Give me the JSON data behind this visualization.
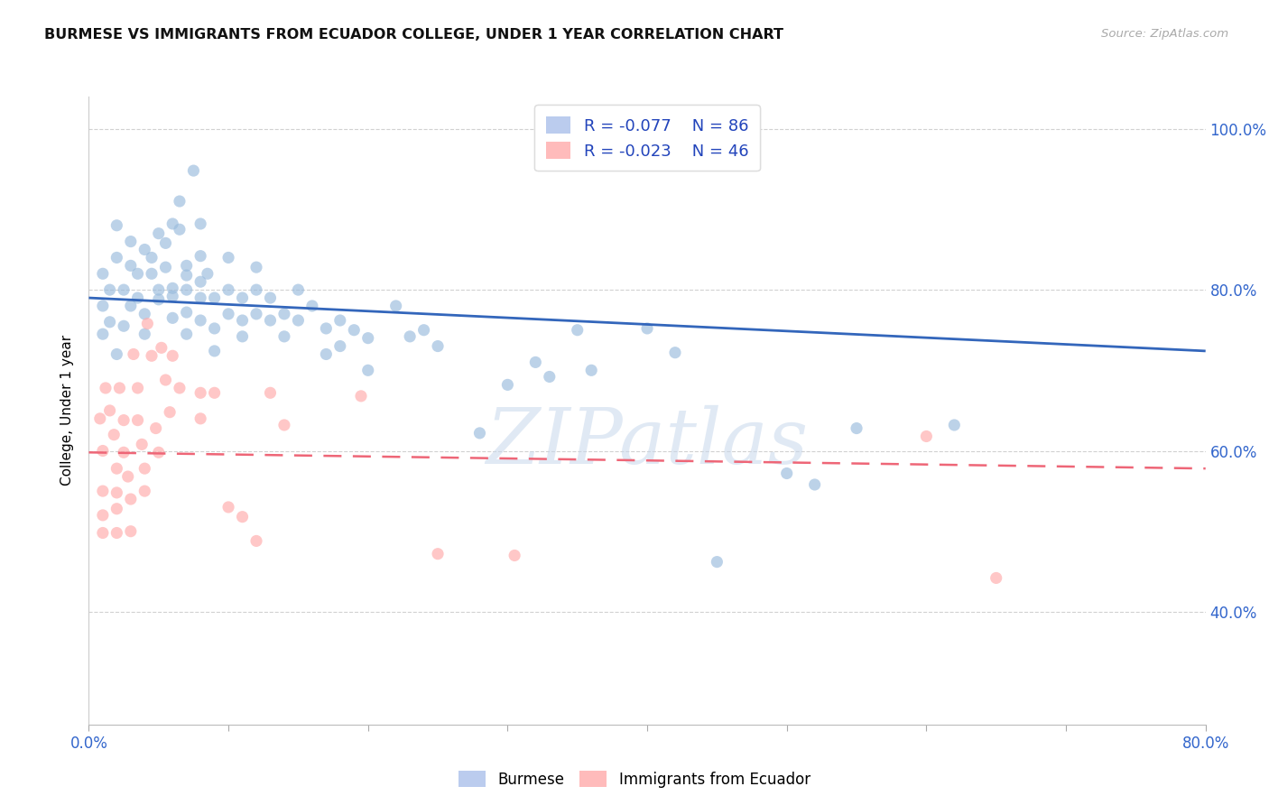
{
  "title": "BURMESE VS IMMIGRANTS FROM ECUADOR COLLEGE, UNDER 1 YEAR CORRELATION CHART",
  "source": "Source: ZipAtlas.com",
  "ylabel": "College, Under 1 year",
  "xlim": [
    0.0,
    0.8
  ],
  "ylim": [
    0.26,
    1.04
  ],
  "xticks": [
    0.0,
    0.1,
    0.2,
    0.3,
    0.4,
    0.5,
    0.6,
    0.7,
    0.8
  ],
  "xticklabels": [
    "0.0%",
    "",
    "",
    "",
    "",
    "",
    "",
    "",
    "80.0%"
  ],
  "yticks": [
    0.4,
    0.6,
    0.8,
    1.0
  ],
  "right_yticklabels": [
    "40.0%",
    "60.0%",
    "80.0%",
    "100.0%"
  ],
  "legend_blue_r": "R = -0.077",
  "legend_blue_n": "N = 86",
  "legend_pink_r": "R = -0.023",
  "legend_pink_n": "N = 46",
  "legend_label_blue": "Burmese",
  "legend_label_pink": "Immigrants from Ecuador",
  "blue_scatter_color": "#99BBDD",
  "pink_scatter_color": "#FFAAAA",
  "blue_line_color": "#3366BB",
  "pink_line_color": "#EE6677",
  "watermark": "ZIPatlas",
  "blue_trend_y": [
    0.79,
    0.724
  ],
  "pink_trend_y": [
    0.598,
    0.578
  ],
  "blue_dots": [
    [
      0.01,
      0.745
    ],
    [
      0.01,
      0.78
    ],
    [
      0.01,
      0.82
    ],
    [
      0.015,
      0.76
    ],
    [
      0.015,
      0.8
    ],
    [
      0.02,
      0.84
    ],
    [
      0.02,
      0.88
    ],
    [
      0.02,
      0.72
    ],
    [
      0.025,
      0.755
    ],
    [
      0.025,
      0.8
    ],
    [
      0.03,
      0.83
    ],
    [
      0.03,
      0.86
    ],
    [
      0.03,
      0.78
    ],
    [
      0.035,
      0.82
    ],
    [
      0.035,
      0.79
    ],
    [
      0.04,
      0.85
    ],
    [
      0.04,
      0.77
    ],
    [
      0.04,
      0.745
    ],
    [
      0.045,
      0.84
    ],
    [
      0.045,
      0.82
    ],
    [
      0.05,
      0.8
    ],
    [
      0.05,
      0.87
    ],
    [
      0.05,
      0.788
    ],
    [
      0.055,
      0.858
    ],
    [
      0.055,
      0.828
    ],
    [
      0.06,
      0.802
    ],
    [
      0.06,
      0.882
    ],
    [
      0.06,
      0.792
    ],
    [
      0.06,
      0.765
    ],
    [
      0.065,
      0.91
    ],
    [
      0.065,
      0.875
    ],
    [
      0.07,
      0.83
    ],
    [
      0.07,
      0.818
    ],
    [
      0.07,
      0.8
    ],
    [
      0.07,
      0.772
    ],
    [
      0.07,
      0.745
    ],
    [
      0.075,
      0.948
    ],
    [
      0.08,
      0.882
    ],
    [
      0.08,
      0.842
    ],
    [
      0.08,
      0.81
    ],
    [
      0.08,
      0.79
    ],
    [
      0.08,
      0.762
    ],
    [
      0.085,
      0.82
    ],
    [
      0.09,
      0.79
    ],
    [
      0.09,
      0.752
    ],
    [
      0.09,
      0.724
    ],
    [
      0.1,
      0.84
    ],
    [
      0.1,
      0.8
    ],
    [
      0.1,
      0.77
    ],
    [
      0.11,
      0.79
    ],
    [
      0.11,
      0.762
    ],
    [
      0.11,
      0.742
    ],
    [
      0.12,
      0.828
    ],
    [
      0.12,
      0.8
    ],
    [
      0.12,
      0.77
    ],
    [
      0.13,
      0.762
    ],
    [
      0.13,
      0.79
    ],
    [
      0.14,
      0.77
    ],
    [
      0.14,
      0.742
    ],
    [
      0.15,
      0.8
    ],
    [
      0.15,
      0.762
    ],
    [
      0.16,
      0.78
    ],
    [
      0.17,
      0.752
    ],
    [
      0.17,
      0.72
    ],
    [
      0.18,
      0.762
    ],
    [
      0.18,
      0.73
    ],
    [
      0.19,
      0.75
    ],
    [
      0.2,
      0.74
    ],
    [
      0.2,
      0.7
    ],
    [
      0.22,
      0.78
    ],
    [
      0.23,
      0.742
    ],
    [
      0.24,
      0.75
    ],
    [
      0.25,
      0.73
    ],
    [
      0.28,
      0.622
    ],
    [
      0.3,
      0.682
    ],
    [
      0.32,
      0.71
    ],
    [
      0.33,
      0.692
    ],
    [
      0.35,
      0.75
    ],
    [
      0.36,
      0.7
    ],
    [
      0.4,
      0.752
    ],
    [
      0.42,
      0.722
    ],
    [
      0.45,
      0.462
    ],
    [
      0.5,
      0.572
    ],
    [
      0.52,
      0.558
    ],
    [
      0.55,
      0.628
    ],
    [
      0.62,
      0.632
    ]
  ],
  "pink_dots": [
    [
      0.008,
      0.64
    ],
    [
      0.01,
      0.6
    ],
    [
      0.01,
      0.55
    ],
    [
      0.01,
      0.52
    ],
    [
      0.01,
      0.498
    ],
    [
      0.012,
      0.678
    ],
    [
      0.015,
      0.65
    ],
    [
      0.018,
      0.62
    ],
    [
      0.02,
      0.578
    ],
    [
      0.02,
      0.548
    ],
    [
      0.02,
      0.528
    ],
    [
      0.02,
      0.498
    ],
    [
      0.022,
      0.678
    ],
    [
      0.025,
      0.638
    ],
    [
      0.025,
      0.598
    ],
    [
      0.028,
      0.568
    ],
    [
      0.03,
      0.54
    ],
    [
      0.03,
      0.5
    ],
    [
      0.032,
      0.72
    ],
    [
      0.035,
      0.678
    ],
    [
      0.035,
      0.638
    ],
    [
      0.038,
      0.608
    ],
    [
      0.04,
      0.578
    ],
    [
      0.04,
      0.55
    ],
    [
      0.042,
      0.758
    ],
    [
      0.045,
      0.718
    ],
    [
      0.048,
      0.628
    ],
    [
      0.05,
      0.598
    ],
    [
      0.052,
      0.728
    ],
    [
      0.055,
      0.688
    ],
    [
      0.058,
      0.648
    ],
    [
      0.06,
      0.718
    ],
    [
      0.065,
      0.678
    ],
    [
      0.08,
      0.672
    ],
    [
      0.08,
      0.64
    ],
    [
      0.09,
      0.672
    ],
    [
      0.1,
      0.53
    ],
    [
      0.11,
      0.518
    ],
    [
      0.12,
      0.488
    ],
    [
      0.13,
      0.672
    ],
    [
      0.14,
      0.632
    ],
    [
      0.195,
      0.668
    ],
    [
      0.25,
      0.472
    ],
    [
      0.305,
      0.47
    ],
    [
      0.6,
      0.618
    ],
    [
      0.65,
      0.442
    ]
  ]
}
